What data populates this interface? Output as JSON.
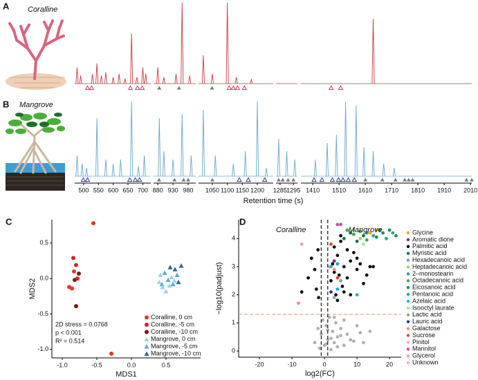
{
  "chart_data": [
    {
      "type": "chromatogram",
      "panels": [
        "A",
        "B"
      ],
      "xlabel": "Retention time (s)",
      "ylim": [
        0,
        100
      ],
      "filled_marker_color": "#7a7a7a",
      "segments": [
        {
          "xlim": [
            470,
            727
          ],
          "xticks": [
            500,
            550,
            600,
            650,
            700
          ]
        },
        {
          "xlim": [
            866,
            1005
          ],
          "xticks": [
            880,
            930,
            980
          ]
        },
        {
          "xlim": [
            1004,
            1253
          ],
          "xticks": [
            1050,
            1100,
            1150,
            1200
          ]
        },
        {
          "xlim": [
            1282,
            1298
          ],
          "xticks": [
            1285,
            1295
          ]
        },
        {
          "xlim": [
            1365,
            2015
          ],
          "xticks": [
            1410,
            1510,
            1610,
            1710,
            1810,
            1910,
            2010
          ]
        }
      ],
      "series": [
        {
          "name": "Coralline",
          "color": "#c8383f",
          "marker_color": "#d6336c",
          "x": [
            478,
            490,
            530,
            545,
            560,
            575,
            600,
            620,
            640,
            662,
            680,
            700,
            710,
            880,
            900,
            940,
            960,
            985,
            1020,
            1050,
            1100,
            1130,
            1180,
            1640
          ],
          "values": [
            20,
            10,
            12,
            25,
            10,
            14,
            8,
            12,
            6,
            62,
            8,
            20,
            12,
            20,
            8,
            12,
            100,
            10,
            35,
            12,
            100,
            8,
            5,
            80
          ],
          "open_markers": [
            513,
            527,
            658,
            682,
            698,
            1106,
            1120,
            1134,
            1157,
            1480,
            1516
          ],
          "filled_markers": [
            885,
            950,
            1049
          ]
        },
        {
          "name": "Mangrove",
          "color": "#6aa6c8",
          "marker_color": "#2e3a8c",
          "x": [
            478,
            495,
            510,
            545,
            575,
            600,
            625,
            662,
            685,
            705,
            885,
            900,
            930,
            960,
            990,
            1020,
            1060,
            1120,
            1160,
            1200,
            1230,
            1284,
            1290,
            1296,
            1420,
            1465,
            1500,
            1535,
            1575,
            1605,
            1640,
            1680,
            1720
          ],
          "values": [
            25,
            15,
            10,
            70,
            20,
            15,
            20,
            90,
            12,
            25,
            70,
            30,
            20,
            75,
            25,
            80,
            25,
            15,
            30,
            90,
            10,
            45,
            30,
            20,
            20,
            40,
            50,
            90,
            85,
            35,
            30,
            15,
            10
          ],
          "open_markers": [
            499,
            513,
            656,
            675,
            689,
            1140,
            1170,
            1225,
            1415,
            1445,
            1485,
            1508,
            1525,
            1545,
            1568
          ],
          "filled_markers": [
            884,
            935,
            965,
            980,
            1050,
            1284,
            1287,
            1291,
            1295,
            1610,
            1675,
            1725,
            1760,
            1775,
            1790,
            1995,
            2015
          ]
        }
      ]
    },
    {
      "type": "scatter",
      "panel": "C",
      "xlabel": "MDS1",
      "ylabel": "MDS2",
      "xlim": [
        -1.15,
        1.0
      ],
      "ylim": [
        -1.12,
        0.83
      ],
      "xticks": [
        {
          "value": -1.0,
          "label": "-1.0"
        },
        -0.5,
        {
          "value": 0,
          "label": "0.0"
        },
        0.5
      ],
      "yticks": [
        {
          "value": -1.0,
          "label": "-1.0"
        },
        -0.5,
        {
          "value": 0,
          "label": "0.0"
        },
        0.5
      ],
      "annotations": [
        "2D stress = 0.0768",
        "p < 0.001",
        "R² = 0.514"
      ],
      "legend": "lower right",
      "series": [
        {
          "name": "Coralline, 0 cm",
          "color": "#e8322c",
          "marker": "circle",
          "x": [
            -0.55,
            -0.29,
            -0.9,
            -0.86,
            -0.83
          ],
          "values": [
            0.78,
            -1.06,
            -0.12,
            -0.14,
            0.1
          ]
        },
        {
          "name": "Coralline, -5 cm",
          "color": "#c62828",
          "marker": "circle",
          "x": [
            -0.84,
            -0.8,
            -0.78
          ],
          "values": [
            0.29,
            0.19,
            0.0
          ]
        },
        {
          "name": "Coralline, -10 cm",
          "color": "#7f1616",
          "marker": "circle",
          "x": [
            -0.8,
            -0.76,
            -0.82
          ],
          "values": [
            -0.39,
            0.07,
            -0.02
          ]
        },
        {
          "name": "Mangrove, 0 cm",
          "color": "#9fd3e8",
          "marker": "triangle",
          "x": [
            0.4,
            0.45,
            0.5,
            0.55,
            0.58,
            0.42,
            0.62
          ],
          "values": [
            -0.05,
            -0.12,
            -0.18,
            -0.1,
            0.02,
            0.05,
            -0.03
          ]
        },
        {
          "name": "Mangrove, -5 cm",
          "color": "#5fa8c8",
          "marker": "triangle",
          "x": [
            0.48,
            0.53,
            0.6,
            0.66,
            0.44
          ],
          "values": [
            0.08,
            -0.02,
            -0.08,
            0.05,
            -0.08
          ]
        },
        {
          "name": "Mangrove, -10 cm",
          "color": "#2d6a88",
          "marker": "triangle",
          "x": [
            0.63,
            0.72,
            0.56,
            0.68
          ],
          "values": [
            0.13,
            0.18,
            0.16,
            -0.05
          ]
        }
      ]
    },
    {
      "type": "scatter",
      "panel": "D",
      "xlabel": "log2(FC)",
      "ylabel": "−log10(padjust)",
      "xlim": [
        -26.4,
        23.6
      ],
      "ylim": [
        -0.22,
        4.67
      ],
      "xticks": [
        -20,
        -10,
        0,
        10,
        20
      ],
      "yticks": [
        0,
        1,
        2,
        3,
        4
      ],
      "vlines": [
        -1,
        1
      ],
      "vline_color": "#111111",
      "hline": 1.3,
      "hline_color": "#f4a582",
      "annotations": [
        "Coralline",
        "Mangrove"
      ],
      "legend": "outside right",
      "series": [
        {
          "name": "Glycine",
          "color": "#f5a623",
          "marker": "circle",
          "x": [
            14,
            16
          ],
          "values": [
            4.2,
            4.3
          ]
        },
        {
          "name": "Aromatic dione",
          "color": "#7b2d8b",
          "marker": "circle",
          "x": [
            3
          ],
          "values": [
            3.2
          ]
        },
        {
          "name": "Palmitic acid",
          "color": "#000000",
          "marker": "circle",
          "x": [
            5,
            7
          ],
          "values": [
            4.1,
            3.6
          ]
        },
        {
          "name": "Myristic acid",
          "color": "#1b6e4a",
          "marker": "circle",
          "x": [
            6,
            8,
            10,
            12
          ],
          "values": [
            4.0,
            4.2,
            3.9,
            4.1
          ]
        },
        {
          "name": "Hexadecanoic acid",
          "color": "#8a9bb0",
          "marker": "circle",
          "x": [
            5
          ],
          "values": [
            2.5
          ]
        },
        {
          "name": "Heptadecanoic acid",
          "color": "#9bd17a",
          "marker": "circle",
          "x": [
            9,
            11
          ],
          "values": [
            4.3,
            4.0
          ]
        },
        {
          "name": "2–monostearin",
          "color": "#2aa38a",
          "marker": "circle",
          "x": [
            13,
            15,
            17,
            19,
            21
          ],
          "values": [
            4.2,
            4.1,
            4.3,
            4.0,
            4.2
          ]
        },
        {
          "name": "Octadecanoic acid",
          "color": "#34a853",
          "marker": "circle",
          "x": [
            7,
            9,
            11,
            13
          ],
          "values": [
            4.3,
            4.15,
            4.25,
            3.95
          ]
        },
        {
          "name": "Eicosanoic acid",
          "color": "#1e8c5a",
          "marker": "circle",
          "x": [
            16,
            18,
            20,
            22
          ],
          "values": [
            4.05,
            4.2,
            4.3,
            4.1
          ]
        },
        {
          "name": "Pentanoic acid",
          "color": "#19a7a0",
          "marker": "circle",
          "x": [
            4
          ],
          "values": [
            3.1
          ]
        },
        {
          "name": "Azelaic acid",
          "color": "#17b3d6",
          "marker": "circle",
          "x": [
            2,
            4,
            10
          ],
          "values": [
            3.0,
            2.2,
            2.0
          ]
        },
        {
          "name": "Isooctyl laurate",
          "color": "#a5e0a0",
          "marker": "circle",
          "x": [
            12
          ],
          "values": [
            3.8
          ]
        },
        {
          "name": "Lactic acid",
          "color": "#9e9e9e",
          "marker": "circle",
          "x": [
            3
          ],
          "values": [
            1.9
          ]
        },
        {
          "name": "Lauric acid",
          "color": "#213c8f",
          "marker": "circle",
          "x": [
            2
          ],
          "values": [
            2.1
          ]
        },
        {
          "name": "Galactose",
          "color": "#f28a80",
          "marker": "circle",
          "x": [
            -8,
            3
          ],
          "values": [
            1.7,
            2.9
          ]
        },
        {
          "name": "Sucrose",
          "color": "#e0443a",
          "marker": "circle",
          "x": [
            2,
            4
          ],
          "values": [
            3.8,
            2.6
          ]
        },
        {
          "name": "Pinitol",
          "color": "#f7a8c4",
          "marker": "circle",
          "x": [
            1.5
          ],
          "values": [
            3.0
          ]
        },
        {
          "name": "Mannitol",
          "color": "#c94ea0",
          "marker": "circle",
          "x": [
            4,
            5
          ],
          "values": [
            4.5,
            4.5
          ]
        },
        {
          "name": "Glycerol",
          "color": "#ec9ad0",
          "marker": "circle",
          "x": [
            -7
          ],
          "values": [
            3.8
          ]
        },
        {
          "name": "Unknown",
          "color": "#c8c8c8",
          "marker": "circle",
          "x": [
            -3,
            -2,
            -1.5,
            -1,
            -0.5,
            0,
            0.5,
            1,
            1.5,
            2,
            2.5,
            3,
            3.5,
            4,
            5,
            6,
            7,
            8,
            10,
            12,
            14,
            3,
            2,
            4,
            6,
            1,
            0.5,
            5,
            9,
            11,
            -7,
            -5,
            -4,
            -3,
            -2.5,
            -2,
            -1.8,
            2,
            2.5,
            3,
            3.5,
            4,
            4.5,
            5,
            5.5,
            6,
            7,
            8,
            9,
            10,
            11,
            12,
            13,
            14,
            15,
            4,
            6,
            3,
            8,
            10
          ],
          "values": [
            0.3,
            0.8,
            0.1,
            0.6,
            1.1,
            0.2,
            0.9,
            0.4,
            1.2,
            0.05,
            0.7,
            0.3,
            1.0,
            0.5,
            0.8,
            0.2,
            0.6,
            0.4,
            0.9,
            0.3,
            0.7,
            1.2,
            0.45,
            0.15,
            1.1,
            0.75,
            0.25,
            0.55,
            0.35,
            0.65,
            2.1,
            2.6,
            3.3,
            2.9,
            2.2,
            3.6,
            1.9,
            2.5,
            3.1,
            2.8,
            2.0,
            3.4,
            2.7,
            3.9,
            2.3,
            3.0,
            2.6,
            3.2,
            3.5,
            2.9,
            3.1,
            2.4,
            2.7,
            3.0,
            3.0,
            1.8,
            2.1,
            3.7,
            2.0,
            3.3
          ],
          "colors": [
            "#b0b0b0",
            "#b0b0b0",
            "#b0b0b0",
            "#b0b0b0",
            "#b0b0b0",
            "#b0b0b0",
            "#b0b0b0",
            "#b0b0b0",
            "#b0b0b0",
            "#b0b0b0",
            "#b0b0b0",
            "#b0b0b0",
            "#b0b0b0",
            "#b0b0b0",
            "#b0b0b0",
            "#b0b0b0",
            "#b0b0b0",
            "#b0b0b0",
            "#b0b0b0",
            "#b0b0b0",
            "#b0b0b0",
            "#b0b0b0",
            "#b0b0b0",
            "#b0b0b0",
            "#b0b0b0",
            "#b0b0b0",
            "#b0b0b0",
            "#b0b0b0",
            "#b0b0b0",
            "#b0b0b0",
            "#111111",
            "#111111",
            "#111111",
            "#111111",
            "#111111",
            "#111111",
            "#111111",
            "#111111",
            "#111111",
            "#111111",
            "#111111",
            "#111111",
            "#111111",
            "#111111",
            "#111111",
            "#111111",
            "#111111",
            "#111111",
            "#111111",
            "#111111",
            "#111111",
            "#111111",
            "#111111",
            "#111111",
            "#111111",
            "#111111",
            "#111111",
            "#111111",
            "#111111",
            "#111111"
          ]
        }
      ]
    }
  ]
}
